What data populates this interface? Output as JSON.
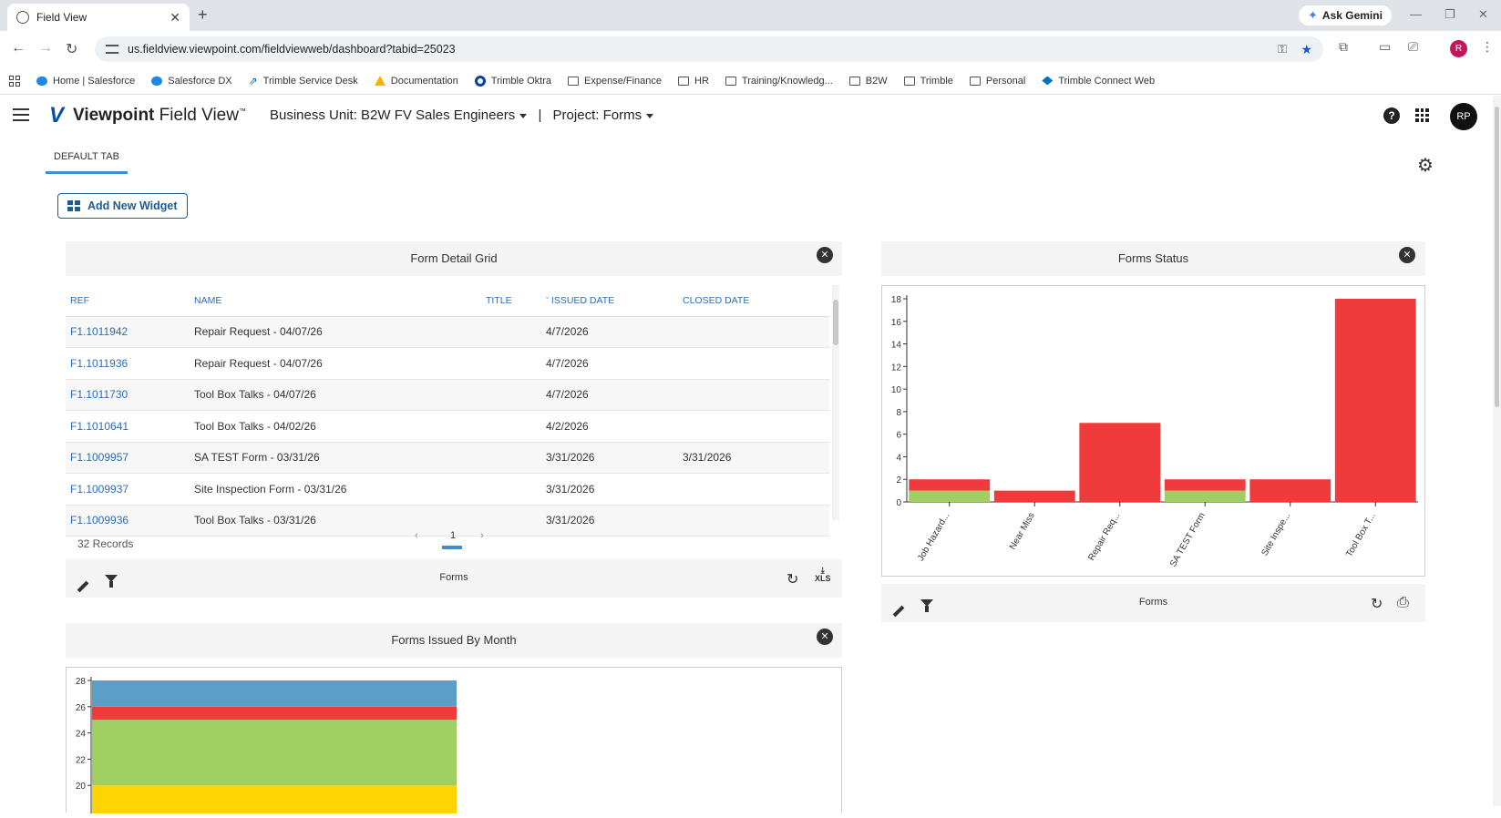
{
  "browser": {
    "tab_title": "Field View",
    "url": "us.fieldview.viewpoint.com/fieldviewweb/dashboard?tabid=25023",
    "gemini_label": "Ask Gemini",
    "profile_initial": "R",
    "bookmarks": [
      {
        "label": "Home | Salesforce",
        "icon": "salesforce-cloud"
      },
      {
        "label": "Salesforce DX",
        "icon": "salesforce-cloud"
      },
      {
        "label": "Trimble Service Desk",
        "icon": "service-desk"
      },
      {
        "label": "Documentation",
        "icon": "google-drive"
      },
      {
        "label": "Trimble Oktra",
        "icon": "okta"
      },
      {
        "label": "Expense/Finance",
        "icon": "folder"
      },
      {
        "label": "HR",
        "icon": "folder"
      },
      {
        "label": "Training/Knowledg...",
        "icon": "folder"
      },
      {
        "label": "B2W",
        "icon": "folder"
      },
      {
        "label": "Trimble",
        "icon": "folder"
      },
      {
        "label": "Personal",
        "icon": "folder"
      },
      {
        "label": "Trimble Connect Web",
        "icon": "trimble-connect"
      }
    ]
  },
  "header": {
    "logo_brand": "Viewpoint",
    "logo_product": "Field View",
    "logo_tm": "™",
    "business_unit_label": "Business Unit:",
    "business_unit_value": "B2W FV Sales Engineers",
    "separator": "|",
    "project_label": "Project:",
    "project_value": "Forms",
    "help_glyph": "?",
    "avatar_initials": "RP"
  },
  "dashboard": {
    "tab_label": "DEFAULT TAB",
    "add_widget_label": "Add New Widget"
  },
  "form_grid": {
    "title": "Form Detail Grid",
    "columns": [
      "REF",
      "NAME",
      "TITLE",
      "ISSUED DATE",
      "CLOSED DATE"
    ],
    "sorted_column_marker": "ˇ",
    "rows": [
      {
        "ref": "F1.1011942",
        "name": "Repair Request - 04/07/26",
        "title": "",
        "issued": "4/7/2026",
        "closed": ""
      },
      {
        "ref": "F1.1011936",
        "name": "Repair Request - 04/07/26",
        "title": "",
        "issued": "4/7/2026",
        "closed": ""
      },
      {
        "ref": "F1.1011730",
        "name": "Tool Box Talks - 04/07/26",
        "title": "",
        "issued": "4/7/2026",
        "closed": ""
      },
      {
        "ref": "F1.1010641",
        "name": "Tool Box Talks - 04/02/26",
        "title": "",
        "issued": "4/2/2026",
        "closed": ""
      },
      {
        "ref": "F1.1009957",
        "name": "SA TEST Form - 03/31/26",
        "title": "",
        "issued": "3/31/2026",
        "closed": "3/31/2026"
      },
      {
        "ref": "F1.1009937",
        "name": "Site Inspection Form - 03/31/26",
        "title": "",
        "issued": "3/31/2026",
        "closed": ""
      },
      {
        "ref": "F1.1009936",
        "name": "Tool Box Talks - 03/31/26",
        "title": "",
        "issued": "3/31/2026",
        "closed": ""
      }
    ],
    "records_text": "32 Records",
    "page_prev": "‹",
    "page_current": "1",
    "page_next": "›",
    "footer_title": "Forms",
    "xls_label": "XLS"
  },
  "forms_status": {
    "title": "Forms Status",
    "footer_title": "Forms"
  },
  "forms_by_month": {
    "title": "Forms Issued By Month"
  },
  "colors": {
    "accent_blue": "#3d8fd1",
    "link_blue": "#2a6db5",
    "bar_red": "#ef3b3b",
    "bar_green": "#9fce63",
    "bar_blue": "#5b9fc9",
    "bar_yellow": "#ffd400"
  },
  "chart_data": [
    {
      "type": "bar",
      "stacked": true,
      "title": "",
      "categories": [
        "Job Hazard...",
        "Near Miss",
        "Repair Req...",
        "SA TEST Form",
        "Site Inspe...",
        "Tool Box T..."
      ],
      "series": [
        {
          "color": "#9fce63",
          "values": [
            1,
            0,
            0,
            1,
            0,
            0
          ]
        },
        {
          "color": "#ef3b3b",
          "values": [
            1,
            1,
            7,
            1,
            2,
            18
          ]
        }
      ],
      "ylim": [
        0,
        18
      ],
      "yticks": [
        0,
        2,
        4,
        6,
        8,
        10,
        12,
        14,
        16,
        18
      ],
      "grid": false,
      "legend": "none"
    },
    {
      "type": "bar",
      "stacked": true,
      "title": "",
      "categories": [
        ""
      ],
      "series": [
        {
          "color": "#ffd400",
          "values": [
            20
          ]
        },
        {
          "color": "#9fce63",
          "values": [
            5
          ]
        },
        {
          "color": "#ef3b3b",
          "values": [
            1
          ]
        },
        {
          "color": "#5b9fc9",
          "values": [
            2
          ]
        }
      ],
      "ylim_visible": [
        19,
        28
      ],
      "yticks": [
        20,
        22,
        24,
        26,
        28
      ],
      "grid": false,
      "legend": "none"
    }
  ]
}
